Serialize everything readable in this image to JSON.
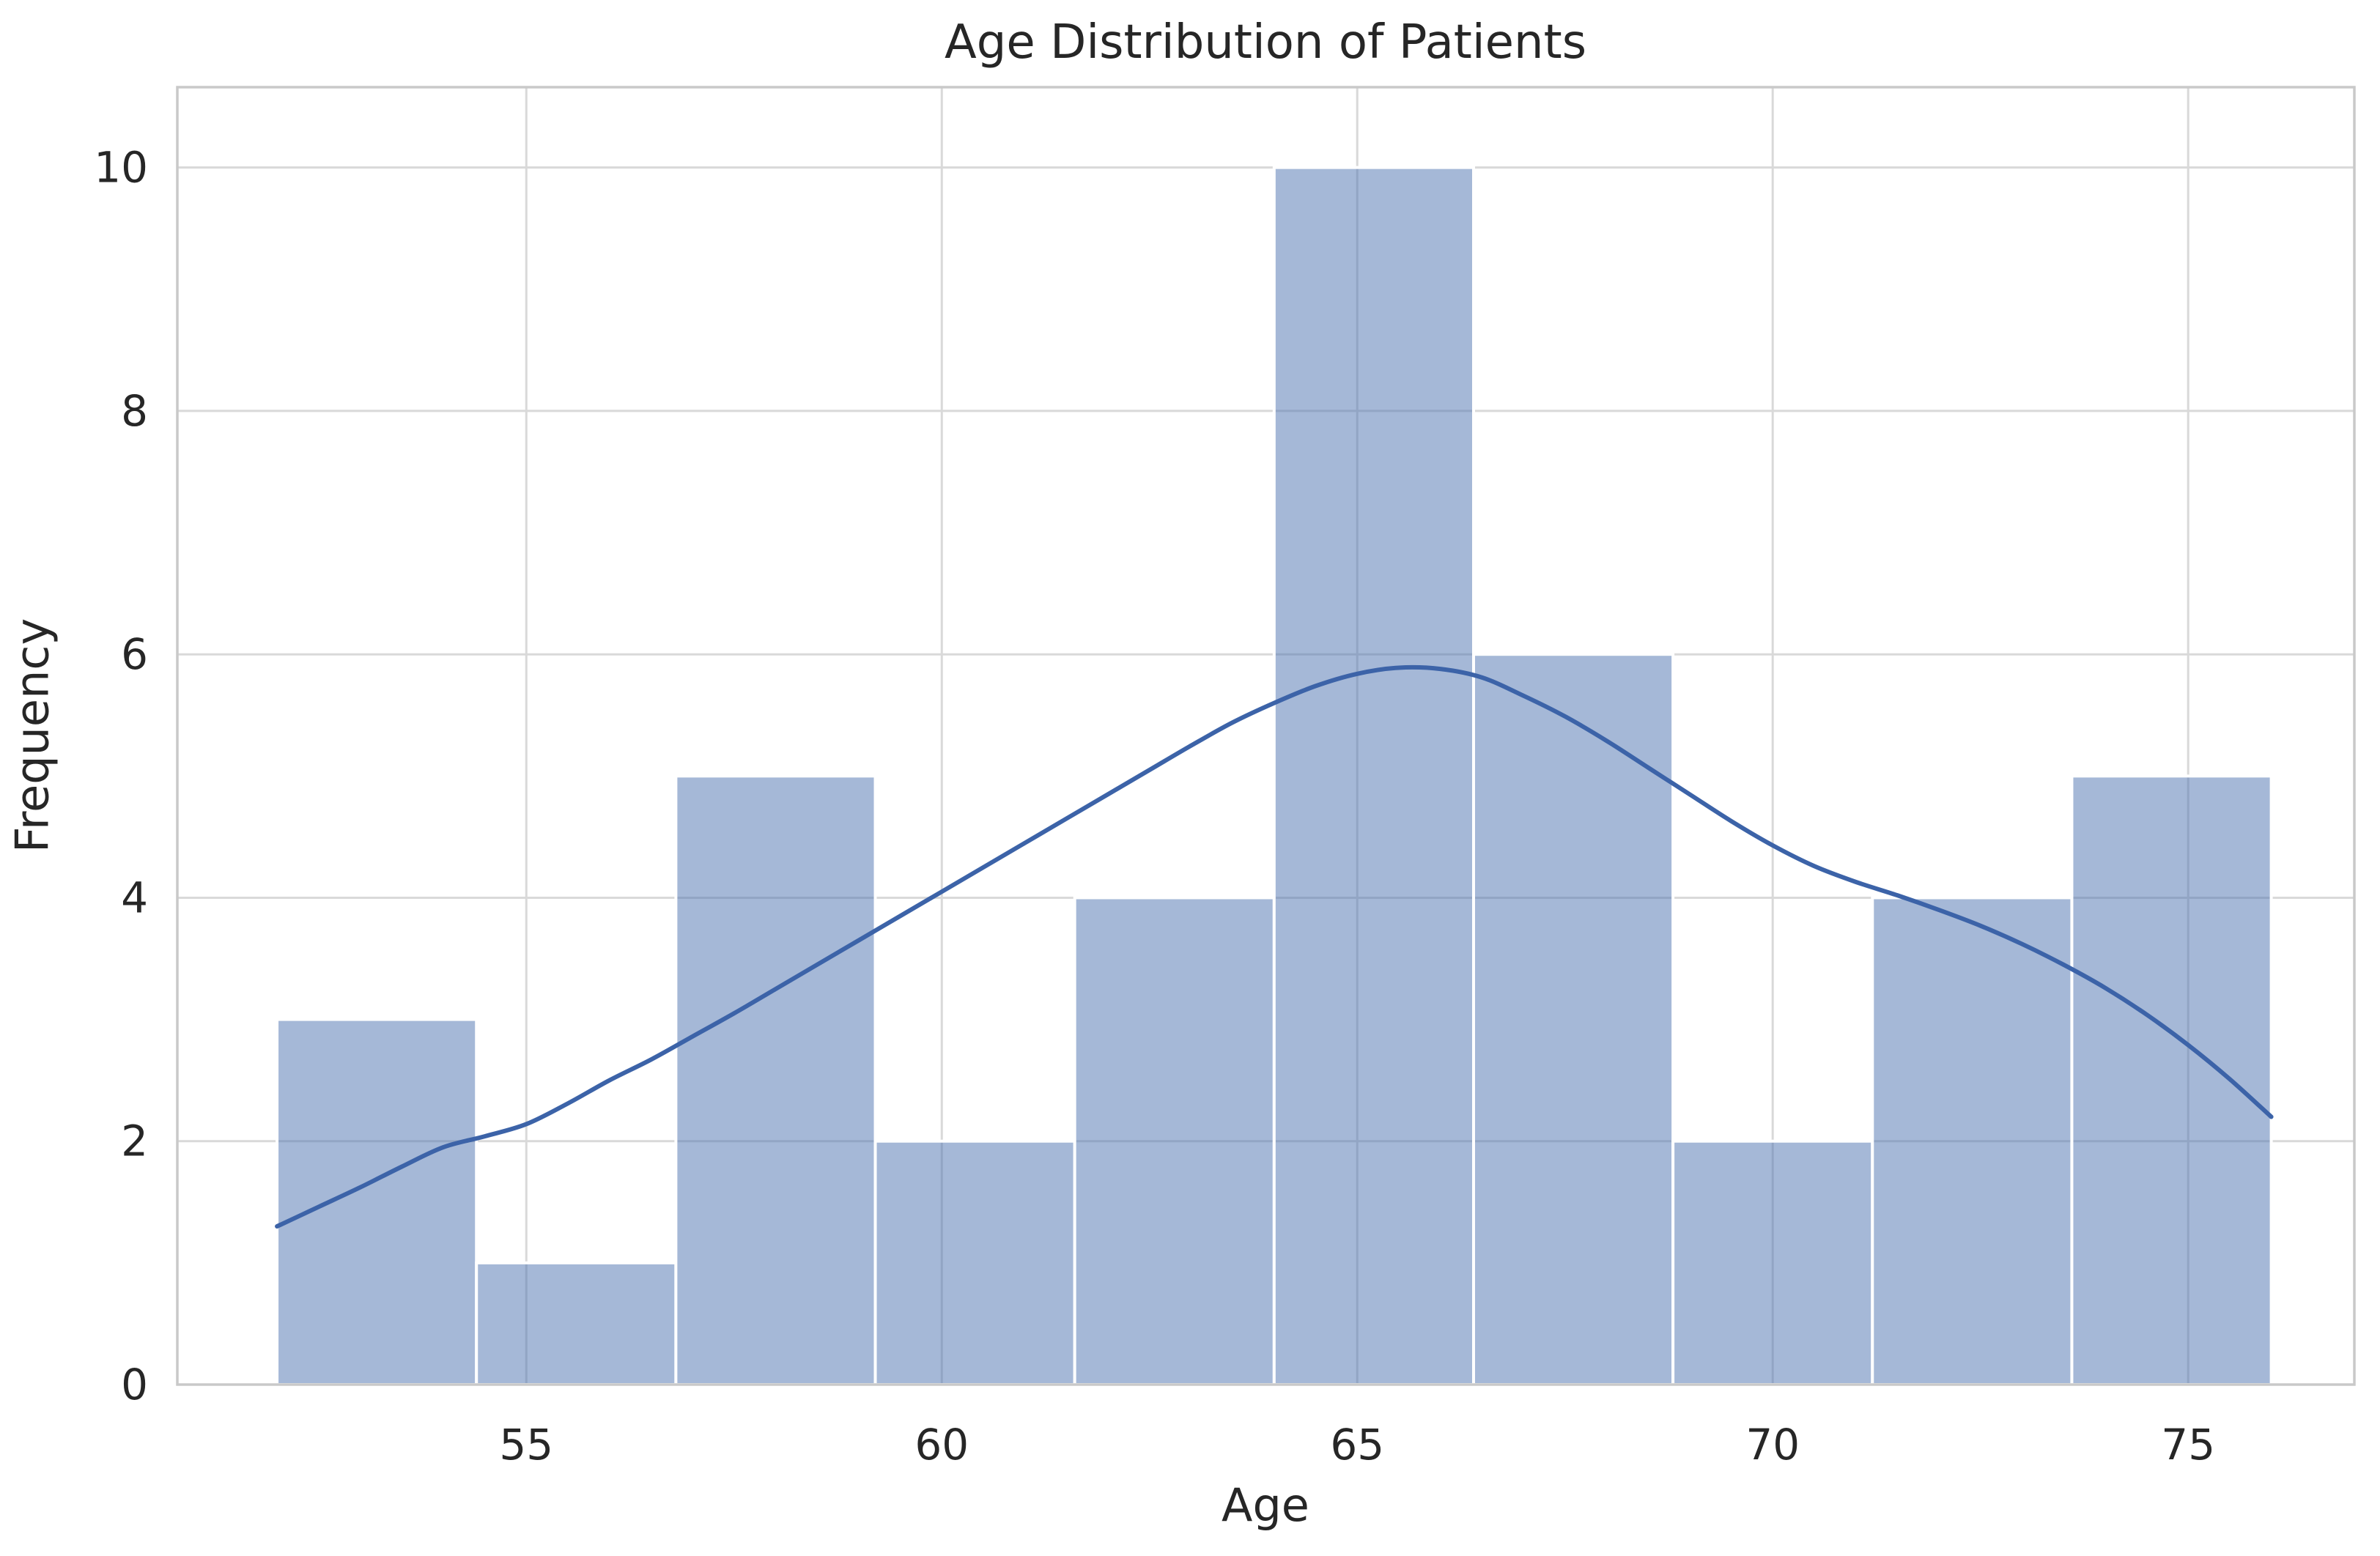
{
  "chart_data": {
    "type": "bar",
    "subtype": "histogram-with-kde",
    "title": "Age Distribution of Patients",
    "xlabel": "Age",
    "ylabel": "Frequency",
    "bin_edges": [
      52.0,
      54.4,
      56.8,
      59.2,
      61.6,
      64.0,
      66.4,
      68.8,
      71.2,
      73.6,
      76.0
    ],
    "frequencies": [
      3,
      1,
      5,
      2,
      4,
      10,
      6,
      2,
      4,
      5
    ],
    "x_ticks": [
      55,
      60,
      65,
      70,
      75
    ],
    "y_ticks": [
      0,
      2,
      4,
      6,
      8,
      10
    ],
    "xlim": [
      50.8,
      77.0
    ],
    "ylim": [
      0,
      10.66
    ],
    "grid": true,
    "legend": "none",
    "kde_line": {
      "type": "line",
      "points": [
        [
          52.0,
          1.3
        ],
        [
          52.5,
          1.46
        ],
        [
          53.0,
          1.62
        ],
        [
          53.5,
          1.79
        ],
        [
          54.0,
          1.95
        ],
        [
          54.5,
          2.04
        ],
        [
          55.0,
          2.14
        ],
        [
          55.5,
          2.31
        ],
        [
          56.0,
          2.5
        ],
        [
          56.5,
          2.67
        ],
        [
          57.0,
          2.86
        ],
        [
          57.5,
          3.05
        ],
        [
          58.0,
          3.25
        ],
        [
          58.5,
          3.45
        ],
        [
          59.0,
          3.65
        ],
        [
          59.5,
          3.85
        ],
        [
          60.0,
          4.05
        ],
        [
          60.5,
          4.25
        ],
        [
          61.0,
          4.45
        ],
        [
          61.5,
          4.65
        ],
        [
          62.0,
          4.85
        ],
        [
          62.5,
          5.05
        ],
        [
          63.0,
          5.25
        ],
        [
          63.5,
          5.44
        ],
        [
          64.0,
          5.6
        ],
        [
          64.5,
          5.74
        ],
        [
          65.0,
          5.84
        ],
        [
          65.5,
          5.89
        ],
        [
          66.0,
          5.88
        ],
        [
          66.5,
          5.81
        ],
        [
          67.0,
          5.66
        ],
        [
          67.5,
          5.49
        ],
        [
          68.0,
          5.29
        ],
        [
          68.5,
          5.07
        ],
        [
          69.0,
          4.85
        ],
        [
          69.5,
          4.63
        ],
        [
          70.0,
          4.43
        ],
        [
          70.5,
          4.26
        ],
        [
          71.0,
          4.13
        ],
        [
          71.5,
          4.02
        ],
        [
          72.0,
          3.9
        ],
        [
          72.5,
          3.77
        ],
        [
          73.0,
          3.62
        ],
        [
          73.5,
          3.45
        ],
        [
          74.0,
          3.26
        ],
        [
          74.5,
          3.04
        ],
        [
          75.0,
          2.79
        ],
        [
          75.5,
          2.51
        ],
        [
          76.0,
          2.2
        ]
      ]
    },
    "colors": {
      "bar_fill_base": "#4c72b0",
      "bar_fill_alpha": 0.5,
      "bar_edge": "#ffffff",
      "kde_line": "#3c63a8",
      "grid": "#d9d9d9",
      "spine": "#c9c9c9",
      "text": "#262626"
    }
  }
}
